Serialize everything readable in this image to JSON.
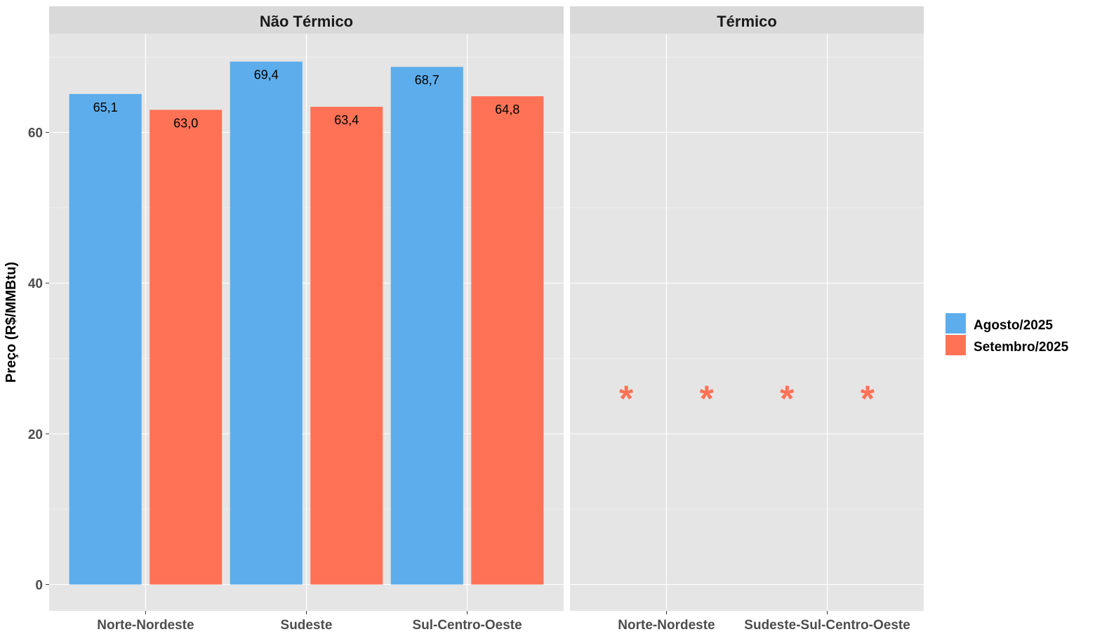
{
  "chart_data": {
    "type": "bar",
    "ylabel": "Preço (R$/MMBtu)",
    "xlabel": "",
    "ylim": [
      -3.5,
      73.1
    ],
    "yticks": [
      0,
      20,
      40,
      60
    ],
    "grid": true,
    "legend_position": "right",
    "colors": {
      "Agosto/2025": "#5DADEC",
      "Setembro/2025": "#FF7256"
    },
    "panels": [
      {
        "title": "Não Térmico",
        "categories": [
          "Norte-Nordeste",
          "Sudeste",
          "Sul-Centro-Oeste"
        ],
        "series": [
          {
            "name": "Agosto/2025",
            "values": [
              65.1,
              69.4,
              68.7
            ],
            "labels": [
              "65,1",
              "69,4",
              "68,7"
            ]
          },
          {
            "name": "Setembro/2025",
            "values": [
              63.0,
              63.4,
              64.8
            ],
            "labels": [
              "63,0",
              "63,4",
              "64,8"
            ]
          }
        ]
      },
      {
        "title": "Térmico",
        "categories": [
          "Norte-Nordeste",
          "Sudeste-Sul-Centro-Oeste"
        ],
        "annotations": [
          {
            "category": "Norte-Nordeste",
            "series": "Agosto/2025",
            "text": "*",
            "y": 26
          },
          {
            "category": "Norte-Nordeste",
            "series": "Setembro/2025",
            "text": "*",
            "y": 26
          },
          {
            "category": "Sudeste-Sul-Centro-Oeste",
            "series": "Agosto/2025",
            "text": "*",
            "y": 26
          },
          {
            "category": "Sudeste-Sul-Centro-Oeste",
            "series": "Setembro/2025",
            "text": "*",
            "y": 26
          }
        ]
      }
    ]
  }
}
